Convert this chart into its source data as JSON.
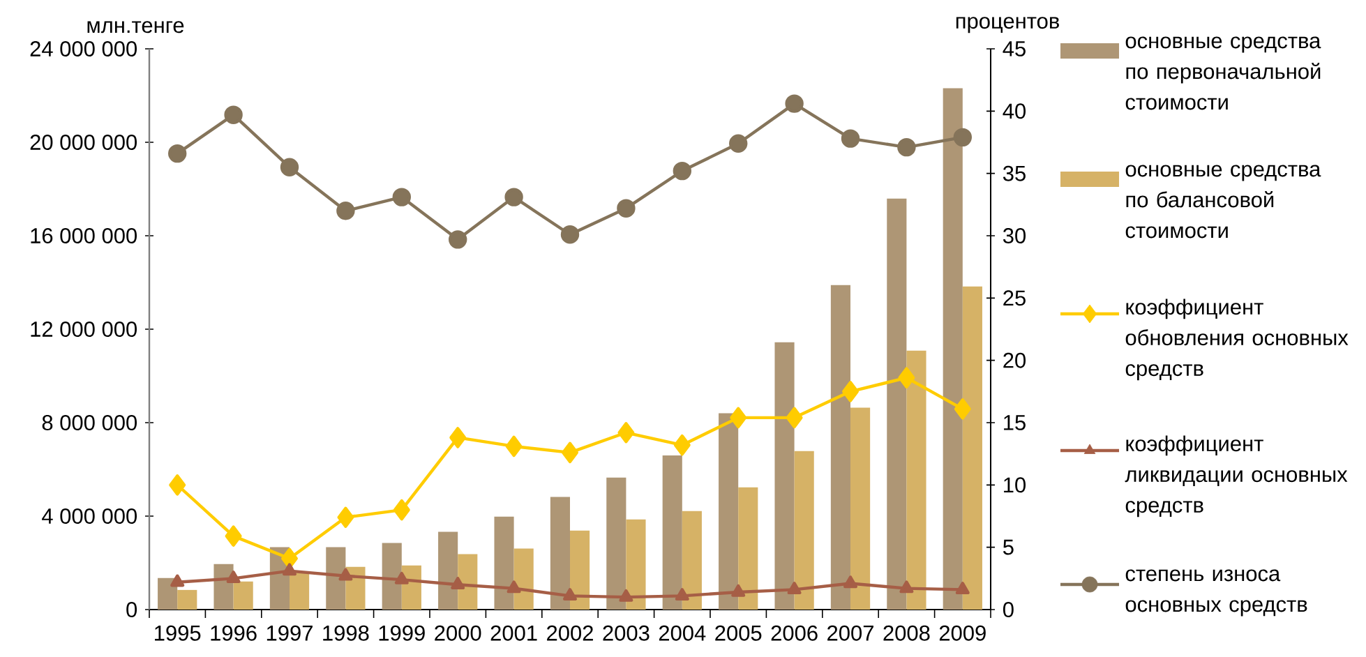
{
  "chart_data": {
    "type": "bar",
    "ylabel": "млн.тенге",
    "y2label": "процентов",
    "categories": [
      "1995",
      "1996",
      "1997",
      "1998",
      "1999",
      "2000",
      "2001",
      "2002",
      "2003",
      "2004",
      "2005",
      "2006",
      "2007",
      "2008",
      "2009"
    ],
    "ylim": [
      0,
      24000000
    ],
    "yticks": [
      {
        "value": 0,
        "label": "0"
      },
      {
        "value": 4000000,
        "label": "4 000 000"
      },
      {
        "value": 8000000,
        "label": "8 000 000"
      },
      {
        "value": 12000000,
        "label": "12 000 000"
      },
      {
        "value": 16000000,
        "label": "16 000 000"
      },
      {
        "value": 20000000,
        "label": "20 000 000"
      },
      {
        "value": 24000000,
        "label": "24 000 000"
      }
    ],
    "y2lim": [
      0,
      45
    ],
    "y2ticks": [
      0,
      5,
      10,
      15,
      20,
      25,
      30,
      35,
      40,
      45
    ],
    "legend": "right",
    "grid": false,
    "series": [
      {
        "name": "основные средства по первоначальной стоимости",
        "color": "#ae9675",
        "values": [
          1350000,
          1950000,
          2670000,
          2670000,
          2850000,
          3330000,
          3980000,
          4820000,
          5650000,
          6600000,
          8400000,
          11440000,
          13890000,
          17590000,
          22310000
        ]
      },
      {
        "name": "основные средства по балансовой стоимости",
        "color": "#d6b266",
        "values": [
          840000,
          1200000,
          1600000,
          1830000,
          1890000,
          2370000,
          2610000,
          3380000,
          3860000,
          4220000,
          5230000,
          6780000,
          8640000,
          11080000,
          13830000
        ]
      },
      {
        "name": "коэффициент обновления основных средств",
        "type": "line",
        "axis": "y2",
        "marker": "diamond",
        "color": "#ffcc00",
        "values": [
          10.0,
          5.9,
          4.1,
          7.4,
          8.0,
          13.8,
          13.1,
          12.6,
          14.2,
          13.2,
          15.4,
          15.4,
          17.5,
          18.6,
          16.1
        ]
      },
      {
        "name": "коэффициент ликвидации основных средств",
        "type": "line",
        "axis": "y2",
        "marker": "triangle",
        "color": "#a65e46",
        "values": [
          2.2,
          2.5,
          3.1,
          2.7,
          2.4,
          2.0,
          1.7,
          1.1,
          1.0,
          1.1,
          1.4,
          1.6,
          2.1,
          1.7,
          1.6
        ]
      },
      {
        "name": "степень износа основных средств",
        "type": "line",
        "axis": "y2",
        "marker": "circle",
        "color": "#85745a",
        "values": [
          36.6,
          39.7,
          35.5,
          32.0,
          33.1,
          29.7,
          33.1,
          30.1,
          32.2,
          35.2,
          37.4,
          40.6,
          37.8,
          37.1,
          37.9
        ]
      }
    ]
  }
}
